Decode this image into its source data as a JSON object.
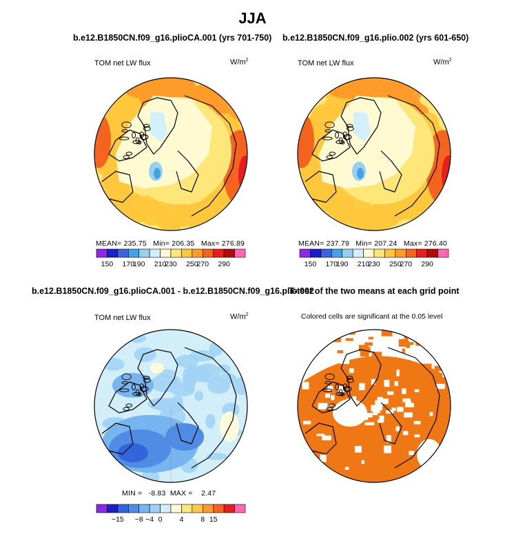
{
  "figure": {
    "title": "JJA"
  },
  "chart_data": [
    {
      "type": "map",
      "title": "b.e12.B1850CN.f09_g16.plioCA.001 (yrs 701-750)",
      "variable": "TOM net LW flux",
      "units": "W/m²",
      "units_base": "W/m",
      "units_exp": "2",
      "projection": "north polar stereographic",
      "stats": {
        "mean": 235.75,
        "min": 206.35,
        "max": 276.89
      },
      "stats_text": "MEAN= 235.75   Min= 206.35   Max= 276.89",
      "colorbar": {
        "levels": [
          150,
          170,
          190,
          210,
          230,
          250,
          270,
          290
        ],
        "level_labels": [
          "150",
          "170",
          "190",
          "210",
          "230",
          "250",
          "270",
          "290"
        ],
        "colors": [
          "#8a2be2",
          "#1e1ec8",
          "#3c64dc",
          "#46a0e6",
          "#96d2f0",
          "#d2f0fa",
          "#fffad2",
          "#ffe678",
          "#ffc83c",
          "#ff9b28",
          "#f5641e",
          "#e61e1e",
          "#b40a0a",
          "#ff69b4"
        ]
      }
    },
    {
      "type": "map",
      "title": "b.e12.B1850CN.f09_g16.plio.002 (yrs 601-650)",
      "variable": "TOM net LW flux",
      "units": "W/m²",
      "units_base": "W/m",
      "units_exp": "2",
      "projection": "north polar stereographic",
      "stats": {
        "mean": 237.79,
        "min": 207.24,
        "max": 276.4
      },
      "stats_text": "MEAN= 237.79   Min= 207.24   Max= 276.40",
      "colorbar": {
        "levels": [
          150,
          170,
          190,
          210,
          230,
          250,
          270,
          290
        ],
        "level_labels": [
          "150",
          "170",
          "190",
          "210",
          "230",
          "250",
          "270",
          "290"
        ],
        "colors": [
          "#8a2be2",
          "#1e1ec8",
          "#3c64dc",
          "#46a0e6",
          "#96d2f0",
          "#d2f0fa",
          "#fffad2",
          "#ffe678",
          "#ffc83c",
          "#ff9b28",
          "#f5641e",
          "#e61e1e",
          "#b40a0a",
          "#ff69b4"
        ]
      }
    },
    {
      "type": "map",
      "title": "b.e12.B1850CN.f09_g16.plioCA.001 - b.e12.B1850CN.f09_g16.plio.002",
      "variable": "TOM net LW flux",
      "units": "W/m²",
      "units_base": "W/m",
      "units_exp": "2",
      "projection": "north polar stereographic",
      "stats": {
        "min": -8.83,
        "max": 2.47
      },
      "stats_text": "MIN =   -8.83  MAX =    2.47",
      "colorbar": {
        "levels": [
          -15,
          -8,
          -4,
          0,
          4,
          8,
          15
        ],
        "level_labels": [
          "−15",
          "−8",
          "−4",
          "0",
          "4",
          "8",
          "15"
        ],
        "colors": [
          "#8a2be2",
          "#1e1ec8",
          "#3264dc",
          "#508ce6",
          "#78b4f0",
          "#a0d2f5",
          "#d2eef8",
          "#fffadc",
          "#ffe682",
          "#ffc846",
          "#ff9b28",
          "#f5641e",
          "#e61e1e",
          "#ff69b4"
        ]
      }
    },
    {
      "type": "map",
      "title": "T-test of the two means at each grid point",
      "subtitle": "Colored cells are significant at the 0.05 level",
      "projection": "north polar stereographic",
      "significance_color": "#f07814"
    }
  ]
}
